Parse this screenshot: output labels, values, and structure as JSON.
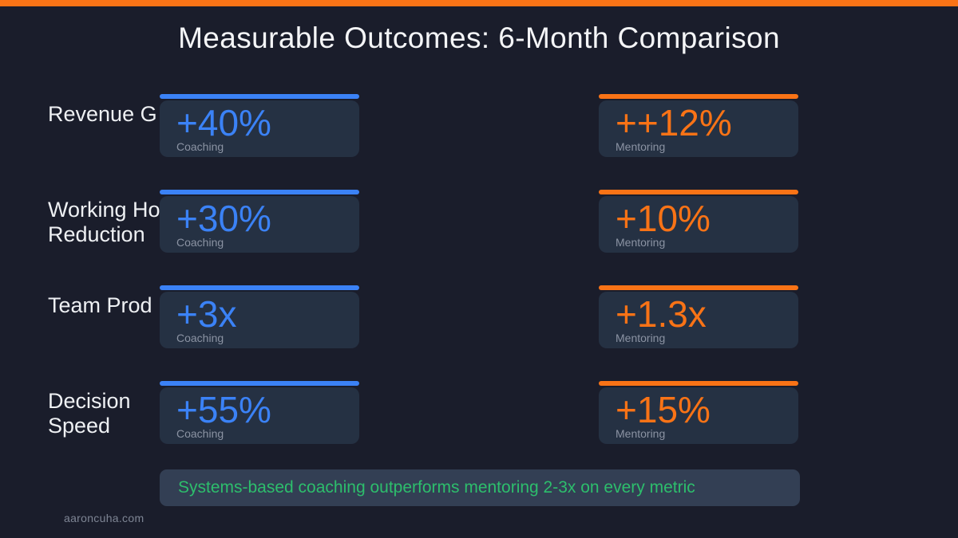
{
  "page": {
    "title": "Measurable Outcomes: 6-Month Comparison",
    "banner": "Systems-based coaching outperforms mentoring 2-3x on every metric",
    "footer": "aaroncuha.com"
  },
  "colors": {
    "background": "#1a1d2b",
    "card_background": "#253143",
    "banner_background": "#333f54",
    "coaching_accent": "#3b82f6",
    "mentoring_accent": "#f97316",
    "top_bar": "#f97316",
    "banner_text": "#2dbe6c",
    "muted_label": "#8b93a3"
  },
  "rows": [
    {
      "label": "Revenue G",
      "coaching": {
        "value": "+40%",
        "label": "Coaching"
      },
      "mentoring": {
        "value": "++12%",
        "label": "Mentoring"
      }
    },
    {
      "label": "Working Ho\nReduction",
      "coaching": {
        "value": "+30%",
        "label": "Coaching"
      },
      "mentoring": {
        "value": "+10%",
        "label": "Mentoring"
      }
    },
    {
      "label": "Team Prod",
      "coaching": {
        "value": "+3x",
        "label": "Coaching"
      },
      "mentoring": {
        "value": "+1.3x",
        "label": "Mentoring"
      }
    },
    {
      "label": "Decision\nSpeed",
      "coaching": {
        "value": "+55%",
        "label": "Coaching"
      },
      "mentoring": {
        "value": "+15%",
        "label": "Mentoring"
      }
    }
  ]
}
